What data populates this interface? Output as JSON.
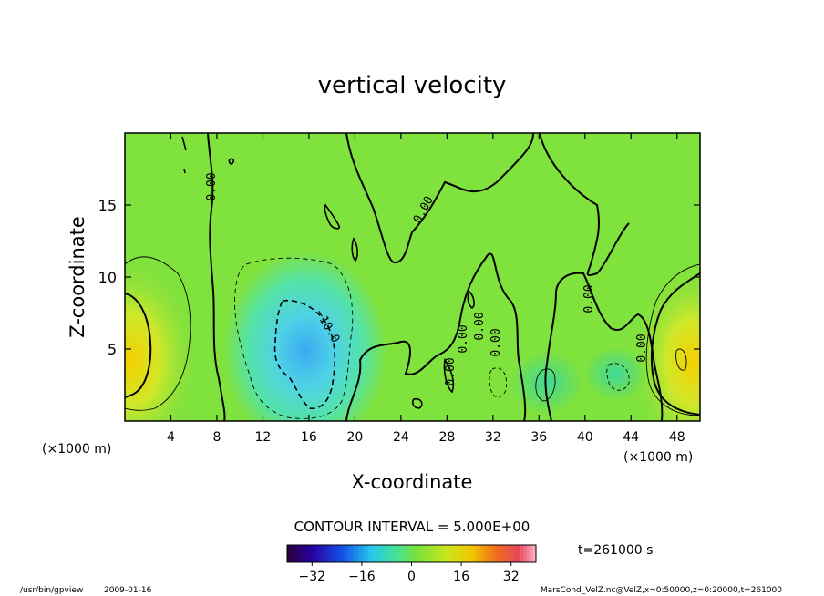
{
  "chart_data": {
    "type": "heatmap",
    "title": "vertical velocity",
    "xlabel": "X-coordinate",
    "ylabel": "Z-coordinate",
    "x_unit_left": "(×1000 m)",
    "x_unit_right": "(×1000 m)",
    "xlim": [
      0,
      50
    ],
    "ylim": [
      0,
      20
    ],
    "x_ticks": [
      4,
      8,
      12,
      16,
      20,
      24,
      28,
      32,
      36,
      40,
      44,
      48
    ],
    "x_tick_labels": [
      "4",
      "8",
      "12",
      "16",
      "20",
      "24",
      "28",
      "32",
      "36",
      "40",
      "44",
      "48"
    ],
    "y_ticks": [
      5,
      10,
      15
    ],
    "y_tick_labels": [
      "5",
      "10",
      "15"
    ],
    "contour_interval_text": "CONTOUR INTERVAL = 5.000E+00",
    "time_text": "t=261000 s",
    "colorbar": {
      "min": -40,
      "max": 40,
      "ticks": [
        -32,
        -16,
        0,
        16,
        32
      ],
      "tick_labels": [
        "−32",
        "−16",
        "0",
        "16",
        "32"
      ]
    },
    "contour_labels": [
      "0.00",
      "0.00",
      "0.00",
      "−10.0",
      "0.00",
      "0.00",
      "0.00",
      "0.00",
      "0.00"
    ],
    "features": [
      {
        "kind": "updraft",
        "x": 0.8,
        "z": 4.0,
        "value": 12
      },
      {
        "kind": "downdraft",
        "x": 16.5,
        "z": 4.5,
        "value": -14
      },
      {
        "kind": "updraft",
        "x": 48.5,
        "z": 4.2,
        "value": 12
      }
    ]
  },
  "footer": {
    "program": "/usr/bin/gpview",
    "date": "2009-01-16",
    "source": "MarsCond_VelZ.nc@VelZ,x=0:50000,z=0:20000,t=261000"
  }
}
